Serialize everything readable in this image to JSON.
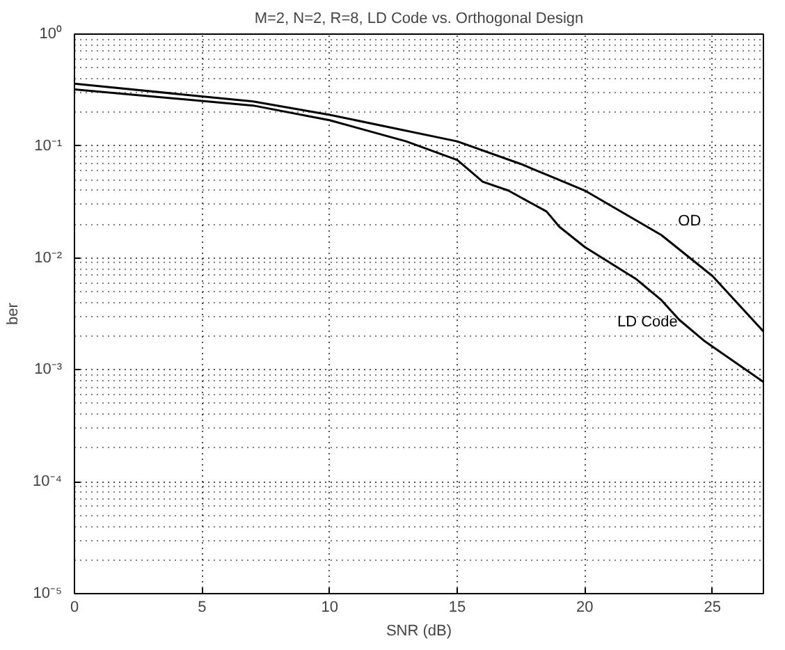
{
  "chart_data": {
    "type": "line",
    "title": "M=2, N=2, R=8, LD Code vs. Orthogonal Design",
    "xlabel": "SNR (dB)",
    "ylabel": "ber",
    "log": "y",
    "grid": true,
    "line_style": "solid",
    "marker": "none",
    "xlim": [
      0,
      27
    ],
    "xticks": [
      0,
      5,
      10,
      15,
      20,
      25
    ],
    "ylim": [
      1e-05,
      1
    ],
    "yticks": [
      {
        "value": 1e-05,
        "label": "10⁻⁵"
      },
      {
        "value": 0.0001,
        "label": "10⁻⁴"
      },
      {
        "value": 0.001,
        "label": "10⁻³"
      },
      {
        "value": 0.01,
        "label": "10⁻²"
      },
      {
        "value": 0.1,
        "label": "10⁻¹"
      },
      {
        "value": 1,
        "label": "10⁰"
      }
    ],
    "series": [
      {
        "name": "OD",
        "color": "#000000",
        "x": [
          0,
          7,
          10,
          15,
          17.5,
          20,
          23,
          25,
          27
        ],
        "values": [
          0.36,
          0.25,
          0.19,
          0.11,
          0.069,
          0.04,
          0.016,
          0.0069,
          0.0022
        ]
      },
      {
        "name": "LD Code",
        "color": "#000000",
        "x": [
          0,
          7,
          10,
          13,
          15,
          16,
          17,
          18.5,
          19,
          20,
          22,
          23,
          23.7,
          24.7,
          27
        ],
        "values": [
          0.32,
          0.23,
          0.17,
          0.11,
          0.075,
          0.048,
          0.04,
          0.026,
          0.019,
          0.0125,
          0.0065,
          0.0042,
          0.0028,
          0.0018,
          0.00078
        ]
      }
    ]
  }
}
